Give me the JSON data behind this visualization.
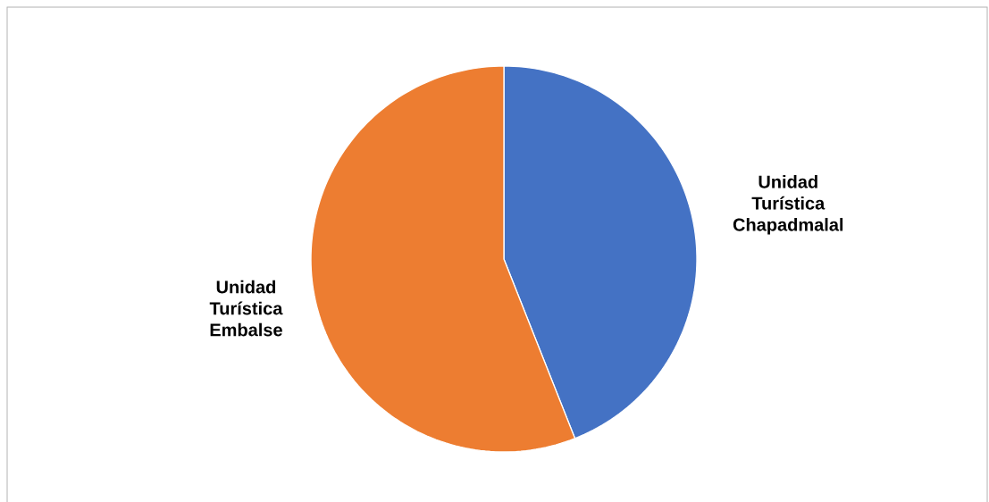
{
  "chart_data": {
    "type": "pie",
    "categories": [
      "Unidad Turística Chapadmalal",
      "Unidad Turística Embalse"
    ],
    "values": [
      44,
      56
    ],
    "colors": [
      "#4472c4",
      "#ed7d31"
    ]
  }
}
